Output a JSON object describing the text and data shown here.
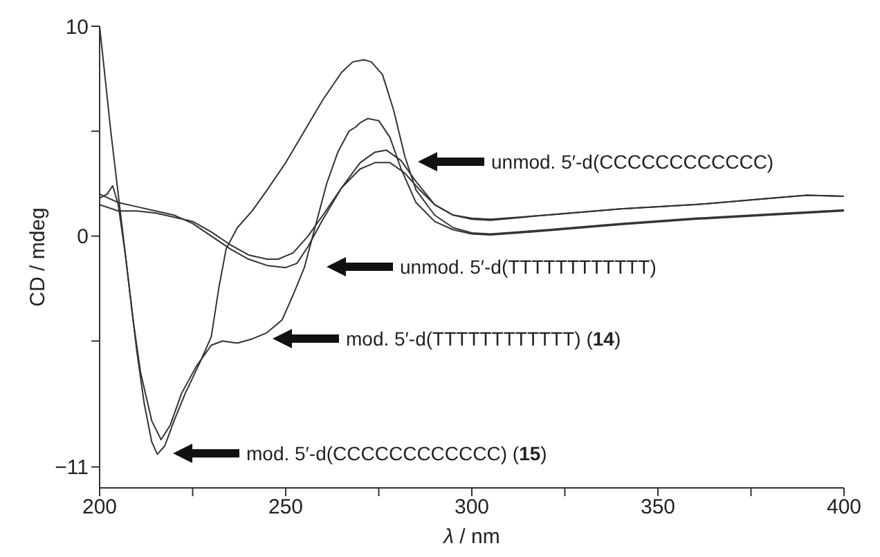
{
  "chart_data": {
    "type": "line",
    "xlabel": "λ / nm",
    "ylabel": "CD / mdeg",
    "xlim": [
      200,
      400
    ],
    "ylim": [
      -12,
      10
    ],
    "xticks": [
      200,
      {
        "value": 225,
        "label": null
      },
      250,
      {
        "value": 275,
        "label": null
      },
      300,
      {
        "value": 325,
        "label": null
      },
      350,
      {
        "value": 375,
        "label": null
      },
      400
    ],
    "yticks": [
      10,
      {
        "value": 5,
        "label": null
      },
      0,
      {
        "value": -5,
        "label": null
      },
      -11
    ],
    "grid": false,
    "legend": false,
    "marker": "none",
    "line_style": "solid",
    "series": [
      {
        "color": "#333333",
        "x": [
          200,
          205,
          210,
          215,
          220,
          225,
          230,
          235,
          240,
          245,
          248,
          252,
          256,
          260,
          265,
          270,
          274,
          278,
          282,
          286,
          290,
          295,
          300,
          305,
          320,
          340,
          360,
          380,
          390,
          400
        ],
        "values": [
          1.5,
          1.2,
          1.2,
          1.1,
          0.9,
          0.7,
          0.2,
          -0.4,
          -0.9,
          -1.1,
          -1.1,
          -0.8,
          0,
          1.0,
          2.3,
          3.2,
          3.5,
          3.5,
          3.0,
          2.2,
          1.5,
          1.0,
          0.8,
          0.75,
          1.0,
          1.3,
          1.5,
          1.8,
          1.95,
          1.9
        ]
      },
      {
        "color": "#333333",
        "x": [
          200,
          205,
          210,
          215,
          220,
          225,
          230,
          235,
          240,
          245,
          250,
          253,
          256,
          260,
          265,
          270,
          274,
          277,
          281,
          285,
          290,
          295,
          300,
          305,
          320,
          340,
          360,
          380,
          390,
          400
        ],
        "values": [
          2.0,
          1.6,
          1.4,
          1.2,
          1.0,
          0.6,
          0,
          -0.6,
          -1.1,
          -1.4,
          -1.5,
          -1.3,
          -0.5,
          0.8,
          2.3,
          3.5,
          4.0,
          4.1,
          3.6,
          2.6,
          1.5,
          1.0,
          0.85,
          0.8,
          1.0,
          1.3,
          1.5,
          1.8,
          1.95,
          1.9
        ]
      },
      {
        "color": "#333333",
        "x": [
          200,
          202,
          203.5,
          205,
          207,
          209,
          211,
          214,
          216.5,
          219,
          222,
          226,
          230,
          233,
          237,
          241,
          245,
          249,
          252,
          255,
          258,
          261,
          264,
          267,
          268.8,
          270,
          272,
          275,
          278,
          281,
          285,
          290,
          295,
          300,
          305,
          320,
          340,
          360,
          380,
          400
        ],
        "values": [
          1.8,
          2.0,
          2.4,
          1.5,
          -1,
          -4,
          -6.5,
          -8.8,
          -9.7,
          -9,
          -7.5,
          -6.2,
          -5.2,
          -5,
          -5.1,
          -4.9,
          -4.6,
          -4,
          -2.8,
          -1.5,
          0.5,
          2.5,
          4.0,
          5.0,
          5.2,
          5.4,
          5.6,
          5.5,
          4.7,
          3.2,
          1.6,
          0.7,
          0.3,
          0.1,
          0.05,
          0.25,
          0.55,
          0.8,
          1.0,
          1.2
        ]
      },
      {
        "color": "#333333",
        "x": [
          200,
          203,
          206,
          208,
          210,
          212,
          214,
          215.5,
          217.5,
          220,
          223,
          227,
          230,
          232,
          234,
          237,
          241,
          245,
          250,
          255,
          260,
          265,
          268,
          271,
          273,
          276,
          279,
          282,
          285,
          290,
          295,
          300,
          305,
          320,
          340,
          360,
          380,
          400
        ],
        "values": [
          10,
          5,
          0.5,
          -2.5,
          -5.5,
          -8,
          -9.8,
          -10.4,
          -10,
          -8.8,
          -7.5,
          -6,
          -4.8,
          -2.5,
          -0.6,
          0.4,
          1.2,
          2.2,
          3.5,
          5,
          6.5,
          7.8,
          8.3,
          8.4,
          8.3,
          7.7,
          6,
          3.8,
          2.2,
          1.0,
          0.4,
          0.15,
          0.1,
          0.3,
          0.6,
          0.85,
          1.05,
          1.25
        ]
      }
    ],
    "annotations": [
      "unmod. 5′-d(CCCCCCCCCCCC)",
      "unmod. 5′-d(TTTTTTTTTTTT)",
      "mod. 5′-d(TTTTTTTTTTTT) (14)",
      "mod. 5′-d(CCCCCCCCCCCC) (15)"
    ]
  }
}
